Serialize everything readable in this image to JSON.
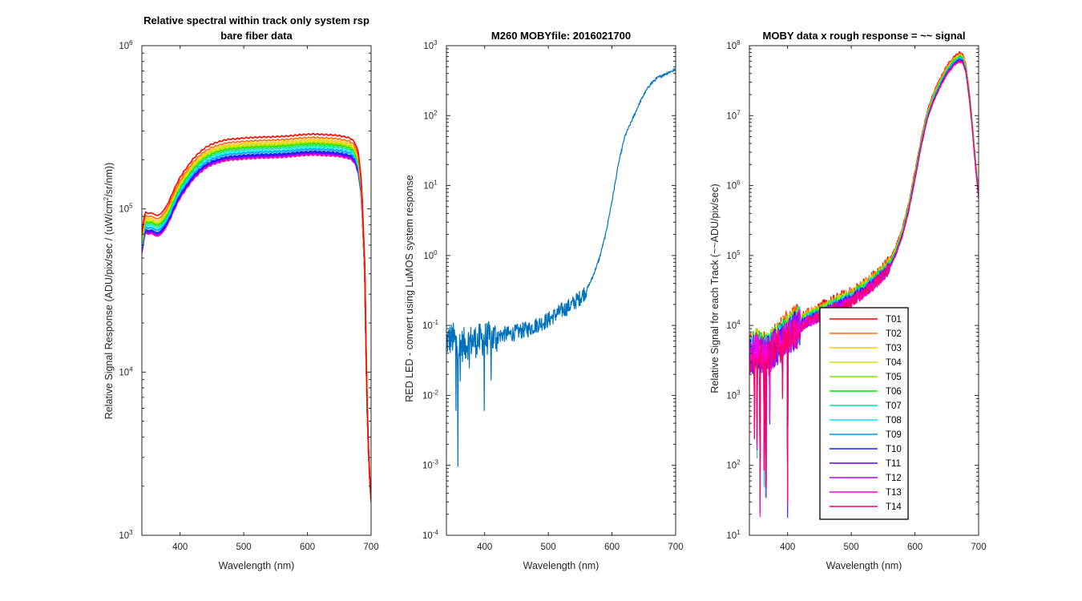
{
  "chart_data": [
    {
      "type": "line",
      "title": [
        "Relative spectral within track only system rsp",
        "bare fiber data"
      ],
      "xlabel": "Wavelength (nm)",
      "ylabel": "Relative Signal Response (ADU/pix/sec / (uW/cm2/sr/nm))",
      "xlim": [
        340,
        700
      ],
      "ylim": [
        1000,
        1000000
      ],
      "yscale": "log",
      "xticks": [
        400,
        500,
        600,
        700
      ],
      "yticks": [
        1000,
        10000,
        100000,
        1000000
      ],
      "tick_exponents": [
        "3",
        "4",
        "5",
        "6"
      ],
      "base_curve": {
        "x": [
          340,
          345,
          350,
          355,
          360,
          365,
          370,
          375,
          380,
          385,
          390,
          395,
          400,
          410,
          420,
          430,
          440,
          450,
          460,
          470,
          480,
          490,
          500,
          510,
          520,
          530,
          540,
          550,
          560,
          570,
          580,
          590,
          600,
          610,
          620,
          630,
          640,
          650,
          660,
          665,
          670,
          675,
          680,
          685,
          690,
          693,
          695,
          697,
          700
        ],
        "values": [
          55000,
          74000,
          72000,
          73000,
          71000,
          70000,
          72000,
          76000,
          82000,
          90000,
          100000,
          110000,
          120000,
          137000,
          155000,
          170000,
          183000,
          192000,
          198000,
          203000,
          206000,
          207000,
          209000,
          210000,
          211000,
          212000,
          212000,
          213000,
          214000,
          215000,
          217000,
          219000,
          220000,
          221000,
          220000,
          219000,
          218000,
          216000,
          212000,
          210000,
          205000,
          195000,
          170000,
          120000,
          40000,
          8000,
          4000,
          2500,
          1600
        ]
      },
      "series": [
        {
          "name": "T01",
          "color": "#FF0000",
          "scale": 1.3
        },
        {
          "name": "T02",
          "color": "#FF6A00",
          "scale": 1.24
        },
        {
          "name": "T03",
          "color": "#FFC800",
          "scale": 1.2
        },
        {
          "name": "T04",
          "color": "#C8E600",
          "scale": 1.17
        },
        {
          "name": "T05",
          "color": "#7FE600",
          "scale": 1.15
        },
        {
          "name": "T06",
          "color": "#00E600",
          "scale": 1.13
        },
        {
          "name": "T07",
          "color": "#00E6A0",
          "scale": 1.1
        },
        {
          "name": "T08",
          "color": "#00E6FF",
          "scale": 1.07
        },
        {
          "name": "T09",
          "color": "#0096FF",
          "scale": 1.05
        },
        {
          "name": "T10",
          "color": "#0028FF",
          "scale": 1.02
        },
        {
          "name": "T11",
          "color": "#5A00FF",
          "scale": 1.0
        },
        {
          "name": "T12",
          "color": "#B400FF",
          "scale": 0.99
        },
        {
          "name": "T13",
          "color": "#FF00E6",
          "scale": 0.98
        },
        {
          "name": "T14",
          "color": "#FF0064",
          "scale": 0.97
        }
      ]
    },
    {
      "type": "line",
      "title": [
        "M260 MOBYfile: 2016021700"
      ],
      "xlabel": "Wavelength (nm)",
      "ylabel": "RED LED - convert using LuMOS system response",
      "xlim": [
        340,
        700
      ],
      "ylim": [
        0.0001,
        1000
      ],
      "yscale": "log",
      "xticks": [
        400,
        500,
        600,
        700
      ],
      "yticks": [
        0.0001,
        0.001,
        0.01,
        0.1,
        1,
        10,
        100,
        1000
      ],
      "tick_exponents": [
        "-4",
        "-3",
        "-2",
        "-1",
        "0",
        "1",
        "2",
        "3"
      ],
      "series": [
        {
          "name": "MOBY",
          "color": "#0072BD",
          "x": [
            340,
            350,
            360,
            370,
            380,
            390,
            400,
            410,
            420,
            430,
            440,
            450,
            460,
            470,
            480,
            490,
            500,
            510,
            520,
            530,
            540,
            550,
            560,
            570,
            580,
            590,
            600,
            610,
            620,
            630,
            640,
            650,
            660,
            670,
            680,
            690,
            700
          ],
          "values": [
            0.06,
            0.065,
            0.05,
            0.055,
            0.06,
            0.06,
            0.065,
            0.065,
            0.07,
            0.075,
            0.075,
            0.08,
            0.085,
            0.09,
            0.1,
            0.11,
            0.12,
            0.14,
            0.16,
            0.18,
            0.21,
            0.25,
            0.32,
            0.5,
            0.9,
            2,
            6,
            20,
            50,
            80,
            130,
            200,
            280,
            340,
            380,
            420,
            450
          ]
        }
      ]
    },
    {
      "type": "line",
      "title": [
        "MOBY data x rough response = ~~ signal"
      ],
      "xlabel": "Wavelength (nm)",
      "ylabel": "Relative Signal for each Track (~~ADU/pix/sec)",
      "xlim": [
        340,
        700
      ],
      "ylim": [
        10,
        100000000
      ],
      "yscale": "log",
      "xticks": [
        400,
        500,
        600,
        700
      ],
      "yticks": [
        10,
        100,
        1000,
        10000,
        100000,
        1000000,
        10000000,
        100000000
      ],
      "tick_exponents": [
        "1",
        "2",
        "3",
        "4",
        "5",
        "6",
        "7",
        "8"
      ],
      "legend": {
        "location": "lower-center",
        "entries": [
          "T01",
          "T02",
          "T03",
          "T04",
          "T05",
          "T06",
          "T07",
          "T08",
          "T09",
          "T10",
          "T11",
          "T12",
          "T13",
          "T14"
        ]
      },
      "base_curve": {
        "x": [
          340,
          350,
          360,
          370,
          380,
          390,
          400,
          410,
          420,
          430,
          440,
          450,
          460,
          470,
          480,
          490,
          500,
          510,
          520,
          530,
          540,
          550,
          560,
          570,
          580,
          590,
          600,
          610,
          620,
          630,
          640,
          650,
          660,
          670,
          675,
          680,
          685,
          690,
          695,
          700
        ],
        "values": [
          3500,
          4500,
          4000,
          4000,
          5000,
          6000,
          7500,
          8500,
          10000,
          12000,
          13000,
          14500,
          16000,
          18000,
          20000,
          22000,
          24000,
          28000,
          32000,
          38000,
          45000,
          55000,
          70000,
          110000,
          200000,
          450000,
          1300000,
          4000000,
          10000000,
          18000000,
          28000000,
          42000000,
          55000000,
          65000000,
          62000000,
          45000000,
          20000000,
          7000000,
          2000000,
          700000
        ]
      }
    }
  ]
}
